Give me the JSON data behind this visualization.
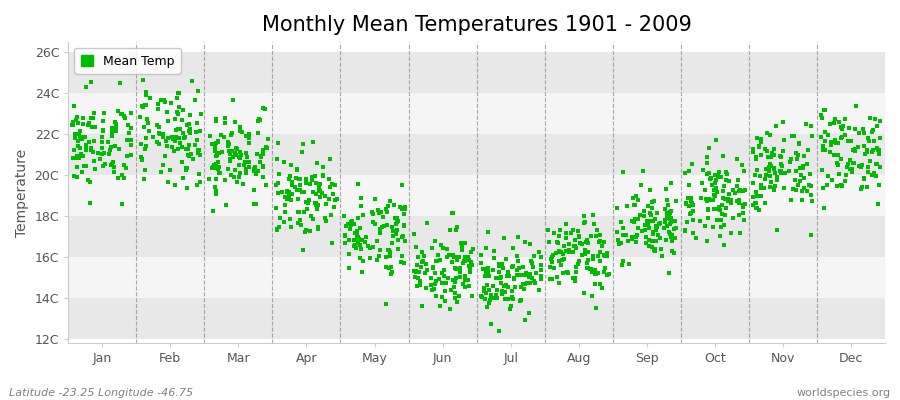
{
  "title": "Monthly Mean Temperatures 1901 - 2009",
  "ylabel": "Temperature",
  "yticks": [
    12,
    14,
    16,
    18,
    20,
    22,
    24,
    26
  ],
  "ytick_labels": [
    "12C",
    "14C",
    "16C",
    "18C",
    "20C",
    "22C",
    "24C",
    "26C"
  ],
  "ylim": [
    11.8,
    26.5
  ],
  "xlim": [
    -0.5,
    11.5
  ],
  "months": [
    "Jan",
    "Feb",
    "Mar",
    "Apr",
    "May",
    "Jun",
    "Jul",
    "Aug",
    "Sep",
    "Oct",
    "Nov",
    "Dec"
  ],
  "dot_color": "#00bb00",
  "dot_size": 5,
  "dot_marker": "s",
  "legend_label": "Mean Temp",
  "bg_color": "#ffffff",
  "plot_bg_color": "#ffffff",
  "band_colors": [
    "#e8e8e8",
    "#f5f5f5",
    "#e8e8e8",
    "#f5f5f5",
    "#e8e8e8",
    "#f5f5f5",
    "#e8e8e8"
  ],
  "vline_color": "#888888",
  "footer_left": "Latitude -23.25 Longitude -46.75",
  "footer_right": "worldspecies.org",
  "title_fontsize": 15,
  "label_fontsize": 10,
  "tick_fontsize": 9,
  "footer_fontsize": 8,
  "monthly_means": [
    21.5,
    21.8,
    21.0,
    19.0,
    17.2,
    15.5,
    15.0,
    16.0,
    17.5,
    19.0,
    20.2,
    21.2
  ],
  "monthly_stds": [
    1.1,
    1.2,
    1.1,
    1.0,
    1.0,
    0.9,
    0.9,
    0.9,
    1.0,
    1.0,
    1.1,
    1.1
  ],
  "n_years": 109,
  "seed": 42
}
